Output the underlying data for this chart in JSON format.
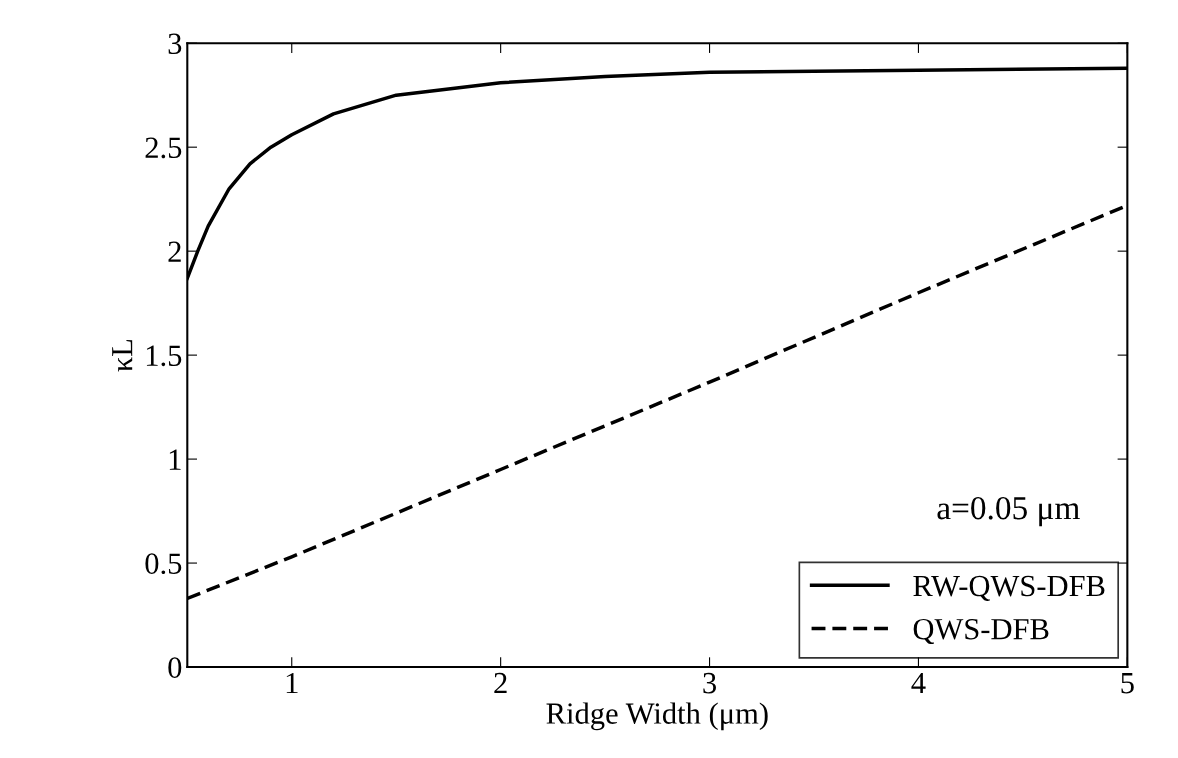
{
  "chart_data": {
    "type": "line",
    "xlabel": "Ridge Width (μm)",
    "ylabel": "κL",
    "xlim": [
      0.5,
      5
    ],
    "ylim": [
      0,
      3
    ],
    "xticks": [
      1,
      2,
      3,
      4,
      5
    ],
    "yticks": [
      0,
      0.5,
      1,
      1.5,
      2,
      2.5,
      3
    ],
    "grid": false,
    "legend": "bottom right",
    "marker": "none",
    "annotations": [
      "a=0.05 μm"
    ],
    "series": [
      {
        "name": "RW-QWS-DFB",
        "color": "#000000",
        "line_style": "solid",
        "x": [
          0.5,
          0.55,
          0.6,
          0.7,
          0.8,
          0.9,
          1,
          1.2,
          1.5,
          2,
          2.5,
          3,
          4,
          5
        ],
        "values": [
          1.87,
          2.0,
          2.12,
          2.3,
          2.42,
          2.5,
          2.56,
          2.66,
          2.75,
          2.81,
          2.84,
          2.86,
          2.87,
          2.88
        ]
      },
      {
        "name": "QWS-DFB",
        "color": "#000000",
        "line_style": "dashed",
        "x": [
          0.5,
          1,
          2,
          3,
          4,
          5
        ],
        "values": [
          0.33,
          0.53,
          0.95,
          1.37,
          1.8,
          2.22
        ]
      }
    ]
  }
}
